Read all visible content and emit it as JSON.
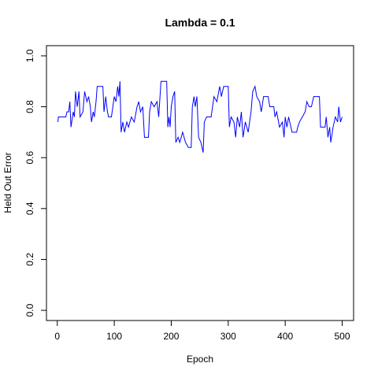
{
  "chart_data": {
    "type": "line",
    "title": "Lambda =  0.1",
    "x_label": "Epoch",
    "y_label": "Held Out Error",
    "color": "#0000ff",
    "x": [
      1,
      2,
      15,
      17,
      20,
      22,
      24,
      28,
      30,
      32,
      35,
      38,
      40,
      45,
      48,
      52,
      55,
      58,
      60,
      63,
      65,
      68,
      70,
      80,
      82,
      85,
      88,
      90,
      95,
      100,
      103,
      106,
      108,
      110,
      112,
      115,
      118,
      122,
      125,
      130,
      135,
      140,
      143,
      146,
      150,
      153,
      160,
      162,
      165,
      170,
      175,
      178,
      182,
      192,
      194,
      196,
      198,
      200,
      203,
      206,
      208,
      212,
      215,
      220,
      225,
      230,
      235,
      237,
      240,
      242,
      245,
      248,
      252,
      256,
      258,
      262,
      270,
      275,
      280,
      285,
      288,
      292,
      300,
      302,
      305,
      310,
      313,
      316,
      320,
      323,
      326,
      330,
      335,
      340,
      343,
      347,
      350,
      355,
      358,
      362,
      370,
      373,
      380,
      382,
      385,
      390,
      395,
      398,
      400,
      403,
      406,
      410,
      412,
      420,
      422,
      425,
      430,
      435,
      438,
      442,
      446,
      450,
      460,
      462,
      470,
      472,
      475,
      478,
      480,
      484,
      488,
      492,
      494,
      497,
      500
    ],
    "values": [
      0.74,
      0.76,
      0.76,
      0.78,
      0.78,
      0.82,
      0.72,
      0.78,
      0.76,
      0.86,
      0.8,
      0.86,
      0.76,
      0.78,
      0.86,
      0.82,
      0.84,
      0.8,
      0.74,
      0.78,
      0.76,
      0.82,
      0.88,
      0.88,
      0.78,
      0.84,
      0.78,
      0.76,
      0.76,
      0.84,
      0.82,
      0.88,
      0.84,
      0.9,
      0.7,
      0.74,
      0.7,
      0.74,
      0.72,
      0.76,
      0.74,
      0.8,
      0.82,
      0.78,
      0.8,
      0.68,
      0.68,
      0.78,
      0.82,
      0.8,
      0.82,
      0.76,
      0.9,
      0.9,
      0.72,
      0.76,
      0.72,
      0.8,
      0.84,
      0.86,
      0.66,
      0.68,
      0.66,
      0.7,
      0.66,
      0.64,
      0.64,
      0.8,
      0.84,
      0.8,
      0.84,
      0.68,
      0.66,
      0.62,
      0.74,
      0.76,
      0.76,
      0.84,
      0.82,
      0.88,
      0.84,
      0.88,
      0.88,
      0.72,
      0.76,
      0.74,
      0.68,
      0.76,
      0.72,
      0.78,
      0.68,
      0.74,
      0.7,
      0.78,
      0.86,
      0.88,
      0.84,
      0.82,
      0.78,
      0.84,
      0.84,
      0.8,
      0.8,
      0.76,
      0.78,
      0.72,
      0.74,
      0.68,
      0.76,
      0.72,
      0.76,
      0.72,
      0.7,
      0.7,
      0.72,
      0.74,
      0.76,
      0.78,
      0.82,
      0.8,
      0.8,
      0.84,
      0.84,
      0.72,
      0.72,
      0.76,
      0.68,
      0.72,
      0.66,
      0.72,
      0.76,
      0.74,
      0.8,
      0.74,
      0.76
    ],
    "xlim": [
      -19,
      520
    ],
    "ylim": [
      -0.04,
      1.04
    ],
    "xticks": [
      0,
      100,
      200,
      300,
      400,
      500
    ],
    "yticks": [
      {
        "value": 0,
        "label": "0.0"
      },
      0.2,
      0.4,
      0.6,
      0.8,
      {
        "value": 1,
        "label": "1.0"
      }
    ]
  }
}
